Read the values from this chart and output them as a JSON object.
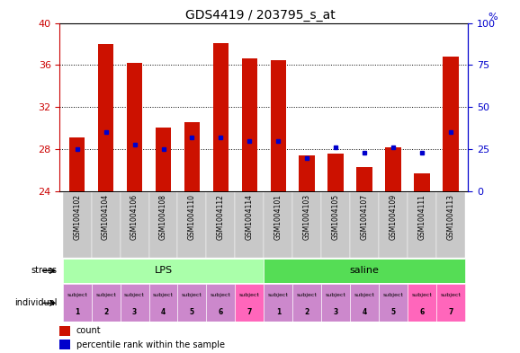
{
  "title": "GDS4419 / 203795_s_at",
  "samples": [
    "GSM1004102",
    "GSM1004104",
    "GSM1004106",
    "GSM1004108",
    "GSM1004110",
    "GSM1004112",
    "GSM1004114",
    "GSM1004101",
    "GSM1004103",
    "GSM1004105",
    "GSM1004107",
    "GSM1004109",
    "GSM1004111",
    "GSM1004113"
  ],
  "counts": [
    29.1,
    38.0,
    36.2,
    30.1,
    30.6,
    38.1,
    36.6,
    36.5,
    27.4,
    27.6,
    26.3,
    28.2,
    25.7,
    36.8
  ],
  "percentiles": [
    25,
    35,
    28,
    25,
    32,
    32,
    30,
    30,
    20,
    26,
    23,
    26,
    23,
    35
  ],
  "ylim_left": [
    24,
    40
  ],
  "ylim_right": [
    0,
    100
  ],
  "yticks_left": [
    24,
    28,
    32,
    36,
    40
  ],
  "yticks_right": [
    0,
    25,
    50,
    75,
    100
  ],
  "stress_groups": [
    {
      "label": "LPS",
      "start": 0,
      "end": 7,
      "color": "#AAFFAA"
    },
    {
      "label": "saline",
      "start": 7,
      "end": 14,
      "color": "#55DD55"
    }
  ],
  "individual_colors_lps": [
    "#CC88CC",
    "#CC88CC",
    "#CC88CC",
    "#CC88CC",
    "#CC88CC",
    "#CC88CC",
    "#FF66BB"
  ],
  "individual_colors_saline": [
    "#CC88CC",
    "#CC88CC",
    "#CC88CC",
    "#CC88CC",
    "#CC88CC",
    "#FF66BB",
    "#FF66BB"
  ],
  "individual_numbers": [
    "1",
    "2",
    "3",
    "4",
    "5",
    "6",
    "7",
    "1",
    "2",
    "3",
    "4",
    "5",
    "6",
    "7"
  ],
  "bar_color": "#CC1100",
  "dot_color": "#0000CC",
  "bar_bottom": 24,
  "bar_width": 0.55,
  "left_tick_color": "#CC0000",
  "right_tick_color": "#0000CC",
  "xticklabel_bg": "#C8C8C8",
  "title_fontsize": 10
}
